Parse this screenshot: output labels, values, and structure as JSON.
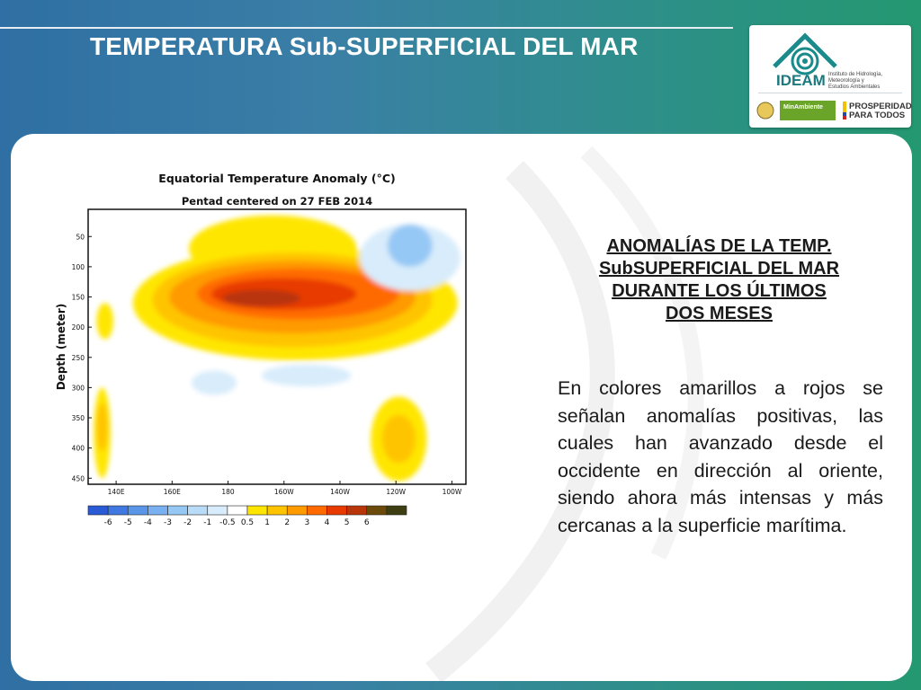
{
  "slide": {
    "title": "TEMPERATURA Sub-SUPERFICIAL DEL MAR"
  },
  "logo": {
    "name": "IDEAM",
    "institute_lines": [
      "Instituto de Hidrología,",
      "Meteorología y",
      "Estudios Ambientales"
    ],
    "ministry": "MinAmbiente",
    "slogan_lines": [
      "PROSPERIDAD",
      "PARA TODOS"
    ]
  },
  "right_panel": {
    "title_lines": [
      "ANOMALÍAS DE LA TEMP.",
      "SubSUPERFICIAL DEL MAR",
      "DURANTE LOS ÚLTIMOS",
      "DOS MESES"
    ],
    "body": "En colores amarillos a rojos se señalan anomalías positivas, las cuales han avanzado desde el occidente en dirección al oriente, siendo ahora más intensas y más cercanas a la superficie marítima."
  },
  "chart_data": {
    "type": "heatmap",
    "title": "Equatorial Temperature Anomaly (°C)",
    "subtitle": "Pentad centered on 27 FEB 2014",
    "xlabel": "",
    "ylabel": "Depth (meter)",
    "x_ticks": [
      "140E",
      "160E",
      "180",
      "160W",
      "140W",
      "120W",
      "100W"
    ],
    "y_ticks": [
      "50",
      "100",
      "150",
      "200",
      "250",
      "300",
      "350",
      "400",
      "450"
    ],
    "y_values": [
      50,
      100,
      150,
      200,
      250,
      300,
      350,
      400,
      450
    ],
    "x_values_lon": [
      140,
      160,
      180,
      200,
      220,
      240,
      260
    ],
    "xlim": [
      130,
      265
    ],
    "ylim": [
      5,
      460
    ],
    "y_reversed": true,
    "legend_placement": "bottom",
    "colorbar": {
      "labels": [
        "-6",
        "-5",
        "-4",
        "-3",
        "-2",
        "-1",
        "-0.5",
        "0.5",
        "1",
        "2",
        "3",
        "4",
        "5",
        "6"
      ],
      "colors": [
        "#2a5bd7",
        "#3f78e0",
        "#5a96e8",
        "#78b0f0",
        "#96c8f5",
        "#b8dcf8",
        "#d8ecfb",
        "#ffffff",
        "#ffe600",
        "#ffc400",
        "#ff9a00",
        "#ff6a00",
        "#e83a00",
        "#b8360a",
        "#6b4a0c",
        "#3d3f12"
      ]
    },
    "contour_levels": [
      {
        "level": "0.5",
        "color": "#ffe600",
        "shapes": [
          {
            "lon": 204,
            "depth": 160,
            "rx_lon": 58,
            "ry_depth": 95
          },
          {
            "lon": 196,
            "depth": 70,
            "rx_lon": 30,
            "ry_depth": 55
          },
          {
            "lon": 241,
            "depth": 385,
            "rx_lon": 10,
            "ry_depth": 70
          },
          {
            "lon": 135,
            "depth": 375,
            "rx_lon": 3,
            "ry_depth": 75
          },
          {
            "lon": 136,
            "depth": 190,
            "rx_lon": 3,
            "ry_depth": 30
          }
        ]
      },
      {
        "level": "1",
        "color": "#ffc400",
        "shapes": [
          {
            "lon": 203,
            "depth": 155,
            "rx_lon": 50,
            "ry_depth": 78
          },
          {
            "lon": 241,
            "depth": 385,
            "rx_lon": 6,
            "ry_depth": 40
          },
          {
            "lon": 135,
            "depth": 365,
            "rx_lon": 2,
            "ry_depth": 40
          }
        ]
      },
      {
        "level": "2",
        "color": "#ff9a00",
        "shapes": [
          {
            "lon": 203,
            "depth": 150,
            "rx_lon": 44,
            "ry_depth": 60
          }
        ]
      },
      {
        "level": "3",
        "color": "#ff6a00",
        "shapes": [
          {
            "lon": 205,
            "depth": 145,
            "rx_lon": 36,
            "ry_depth": 42
          }
        ]
      },
      {
        "level": "4",
        "color": "#e83a00",
        "shapes": [
          {
            "lon": 200,
            "depth": 145,
            "rx_lon": 26,
            "ry_depth": 26
          }
        ]
      },
      {
        "level": "5",
        "color": "#b8360a",
        "shapes": [
          {
            "lon": 192,
            "depth": 152,
            "rx_lon": 14,
            "ry_depth": 14
          }
        ]
      },
      {
        "level": "-0.5",
        "color": "#d8ecfb",
        "shapes": [
          {
            "lon": 175,
            "depth": 292,
            "rx_lon": 8,
            "ry_depth": 20
          },
          {
            "lon": 245,
            "depth": 85,
            "rx_lon": 18,
            "ry_depth": 55
          },
          {
            "lon": 208,
            "depth": 280,
            "rx_lon": 16,
            "ry_depth": 18
          }
        ]
      },
      {
        "level": "-1",
        "color": "#96c8f5",
        "shapes": [
          {
            "lon": 245,
            "depth": 65,
            "rx_lon": 8,
            "ry_depth": 35
          }
        ]
      }
    ]
  }
}
